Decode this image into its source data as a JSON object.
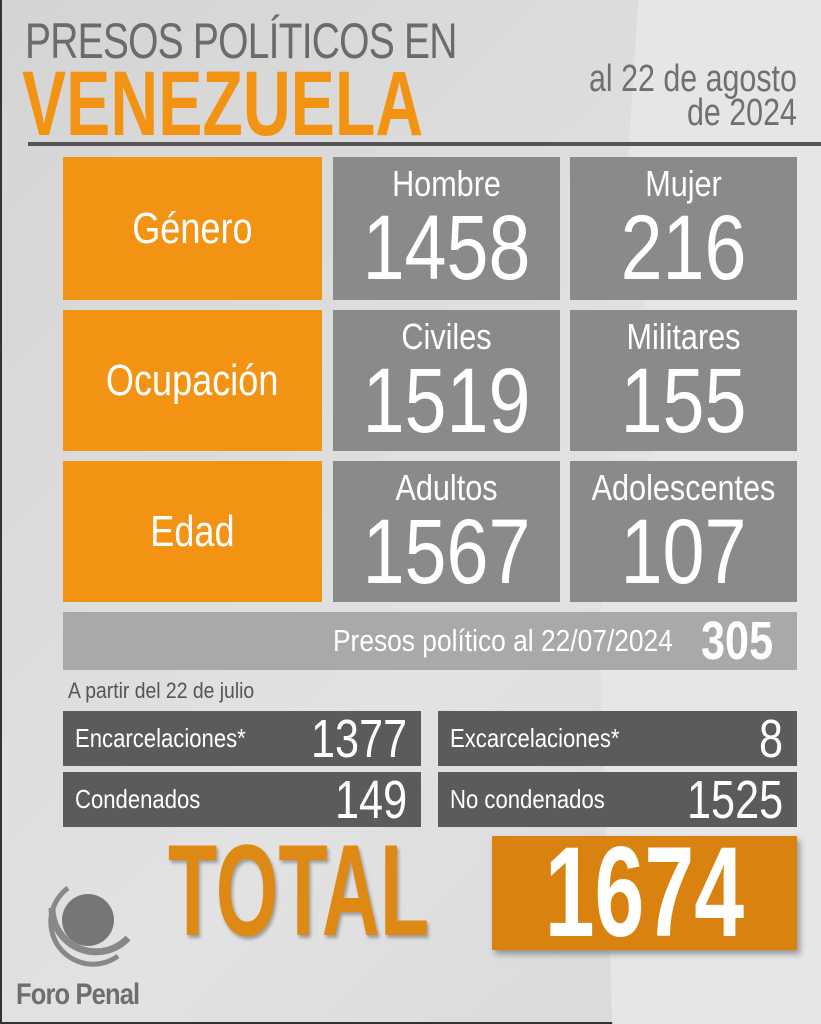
{
  "header": {
    "line1": "PRESOS POLÍTICOS EN",
    "line2": "VENEZUELA",
    "date_line1": "al 22 de agosto",
    "date_line2": "de 2024"
  },
  "rows": [
    {
      "category": "Género",
      "items": [
        {
          "label": "Hombre",
          "value": "1458"
        },
        {
          "label": "Mujer",
          "value": "216"
        }
      ]
    },
    {
      "category": "Ocupación",
      "items": [
        {
          "label": "Civiles",
          "value": "1519"
        },
        {
          "label": "Militares",
          "value": "155"
        }
      ]
    },
    {
      "category": "Edad",
      "items": [
        {
          "label": "Adultos",
          "value": "1567"
        },
        {
          "label": "Adolescentes",
          "value": "107"
        }
      ]
    }
  ],
  "previous": {
    "label": "Presos político al 22/07/2024",
    "value": "305"
  },
  "since": {
    "label": "A partir del 22 de julio",
    "items": [
      {
        "label": "Encarcelaciones*",
        "value": "1377"
      },
      {
        "label": "Excarcelaciones*",
        "value": "8"
      },
      {
        "label": "Condenados",
        "value": "149"
      },
      {
        "label": "No condenados",
        "value": "1525"
      }
    ]
  },
  "total": {
    "label": "TOTAL",
    "value": "1674"
  },
  "brand": {
    "name": "Foro Penal"
  },
  "colors": {
    "orange": "#f39314",
    "total_box": "#d9820f",
    "cell_gray": "#8a8a8a",
    "dark_gray": "#5b5b5b",
    "bar_gray": "#a9a9a9"
  }
}
